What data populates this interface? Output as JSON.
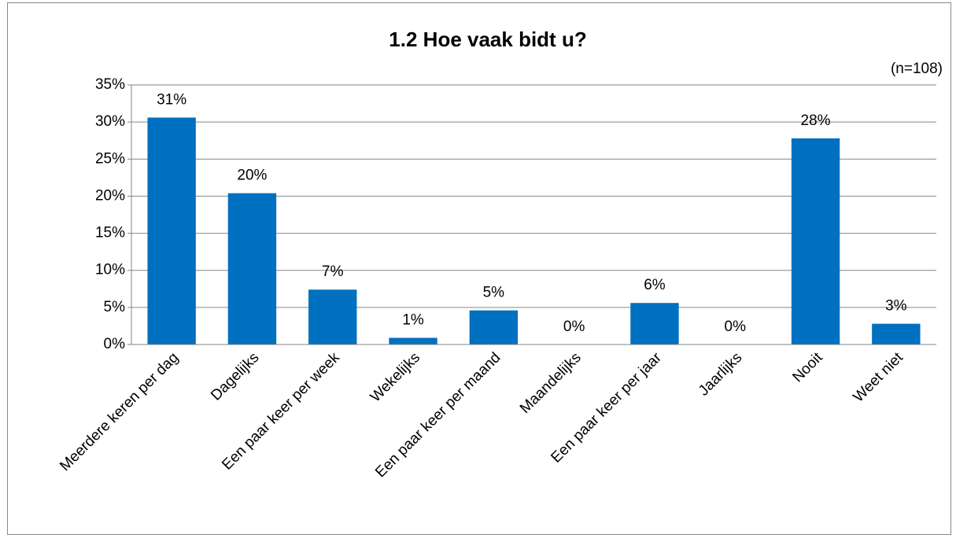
{
  "chart_data": {
    "type": "bar",
    "title": "1.2 Hoe vaak bidt u?",
    "annotation": "(n=108)",
    "categories": [
      "Meerdere keren per dag",
      "Dagelijks",
      "Een paar keer per week",
      "Wekelijks",
      "Een paar keer per maand",
      "Maandelijks",
      "Een paar keer per jaar",
      "Jaarlijks",
      "Nooit",
      "Weet niet"
    ],
    "values": [
      30.6,
      20.4,
      7.4,
      0.9,
      4.6,
      0,
      5.6,
      0,
      27.8,
      2.8
    ],
    "value_labels": [
      "31%",
      "20%",
      "7%",
      "1%",
      "5%",
      "0%",
      "6%",
      "0%",
      "28%",
      "3%"
    ],
    "color": "#0070c0",
    "ylim": [
      0,
      35
    ],
    "yticks": [
      {
        "value": 0,
        "label": "0%"
      },
      {
        "value": 5,
        "label": "5%"
      },
      {
        "value": 10,
        "label": "10%"
      },
      {
        "value": 15,
        "label": "15%"
      },
      {
        "value": 20,
        "label": "20%"
      },
      {
        "value": 25,
        "label": "25%"
      },
      {
        "value": 30,
        "label": "30%"
      },
      {
        "value": 35,
        "label": "35%"
      }
    ],
    "grid": true
  }
}
